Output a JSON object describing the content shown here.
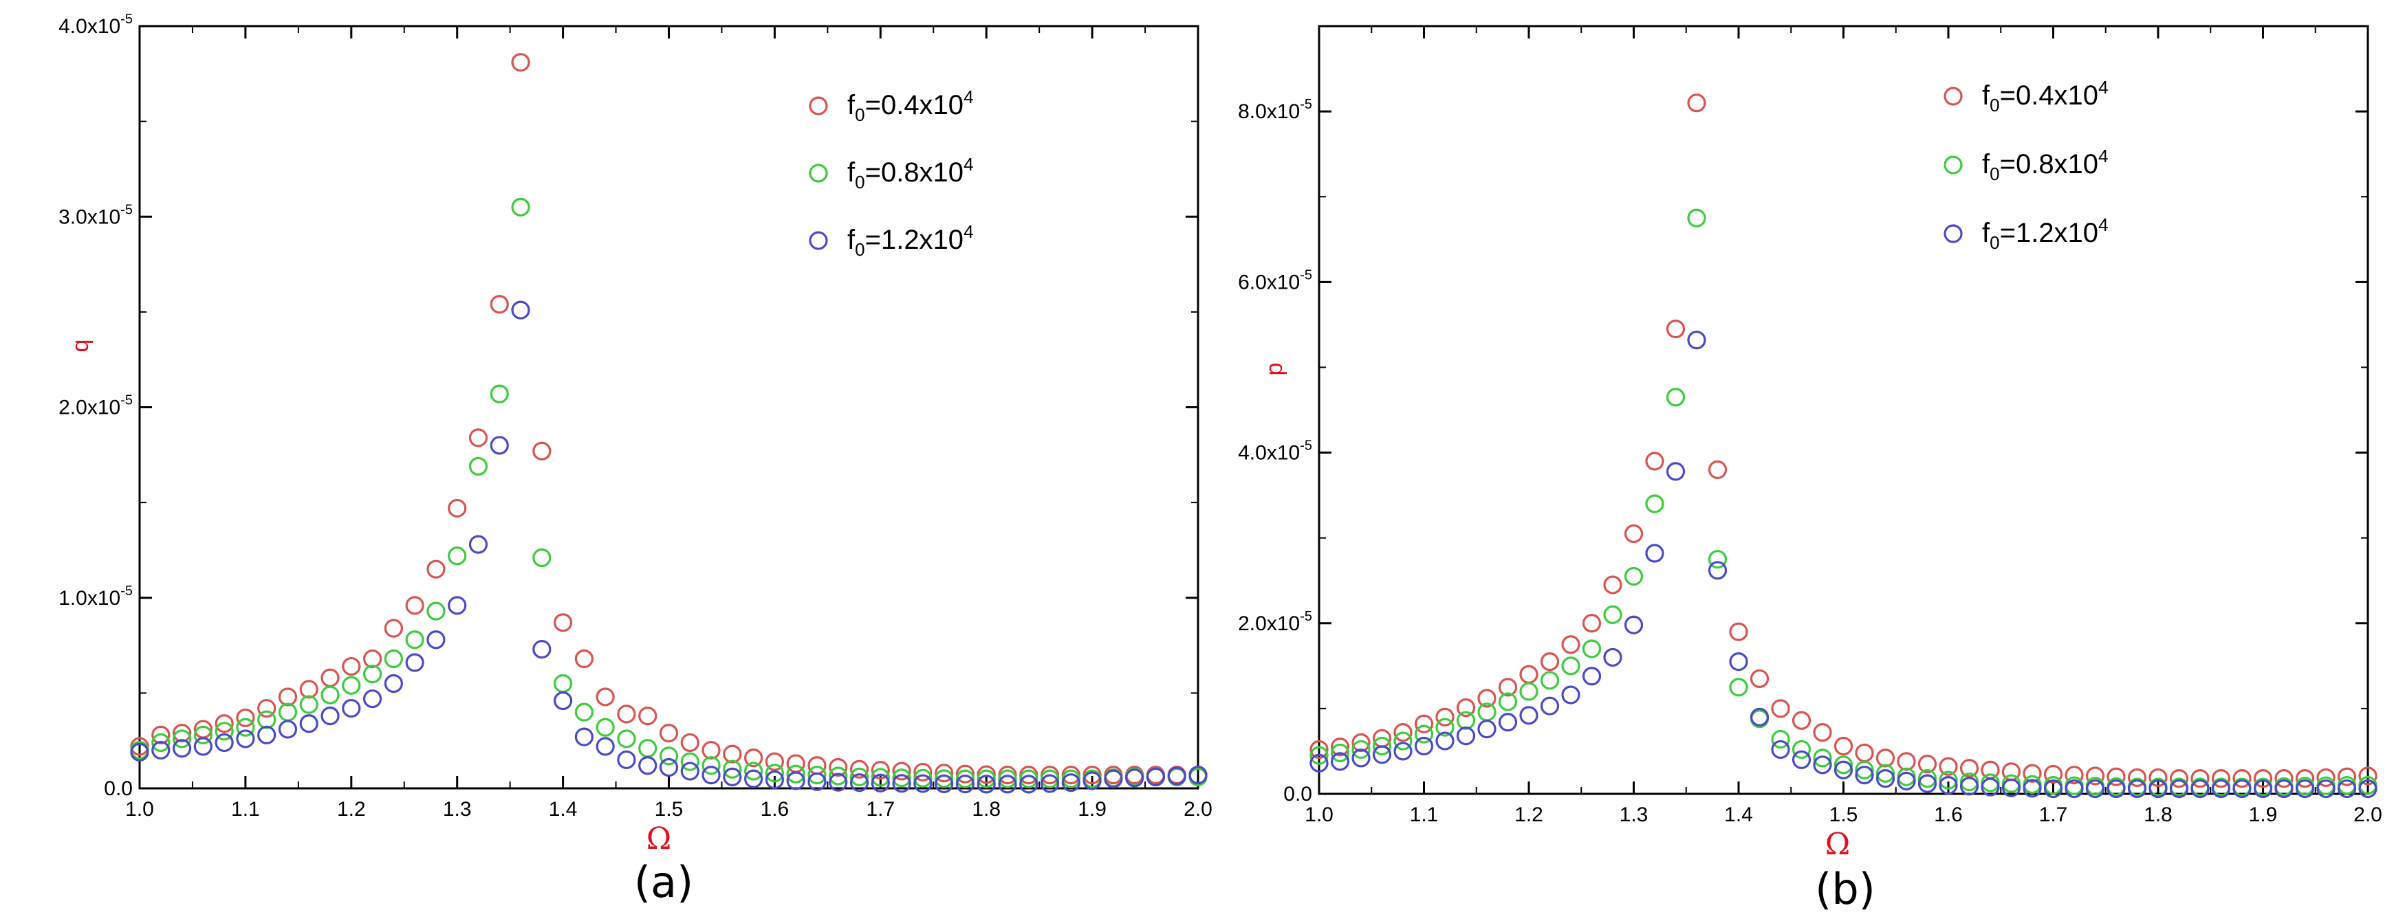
{
  "chart_data": [
    {
      "panel_label": "(a)",
      "type": "scatter",
      "xlabel": "Ω",
      "ylabel": "q",
      "xlim": [
        1.0,
        2.0
      ],
      "ylim": [
        0,
        4e-05
      ],
      "x_ticks": [
        "1.0",
        "1.1",
        "1.2",
        "1.3",
        "1.4",
        "1.5",
        "1.6",
        "1.7",
        "1.8",
        "1.9",
        "2.0"
      ],
      "y_ticks": [
        {
          "base": "0.0",
          "exp": ""
        },
        {
          "base": "1.0x10",
          "exp": "-5"
        },
        {
          "base": "2.0x10",
          "exp": "-5"
        },
        {
          "base": "3.0x10",
          "exp": "-5"
        },
        {
          "base": "4.0x10",
          "exp": "-5"
        }
      ],
      "legend_position": "top-right",
      "marker": "open-circle",
      "x": [
        1.0,
        1.02,
        1.04,
        1.06,
        1.08,
        1.1,
        1.12,
        1.14,
        1.16,
        1.18,
        1.2,
        1.22,
        1.24,
        1.26,
        1.28,
        1.3,
        1.32,
        1.34,
        1.36,
        1.38,
        1.4,
        1.42,
        1.44,
        1.46,
        1.48,
        1.5,
        1.52,
        1.54,
        1.56,
        1.58,
        1.6,
        1.62,
        1.64,
        1.66,
        1.68,
        1.7,
        1.72,
        1.74,
        1.76,
        1.78,
        1.8,
        1.82,
        1.84,
        1.86,
        1.88,
        1.9,
        1.92,
        1.94,
        1.96,
        1.98,
        2.0
      ],
      "series": [
        {
          "label_base": "f",
          "label_sub": "0",
          "label_mid": "=0.4x10",
          "label_exp": "4",
          "color": "#d9534f",
          "values": [
            2.2e-06,
            2.8e-06,
            2.9e-06,
            3.1e-06,
            3.4e-06,
            3.7e-06,
            4.2e-06,
            4.8e-06,
            5.2e-06,
            5.8e-06,
            6.4e-06,
            6.8e-06,
            8.4e-06,
            9.6e-06,
            1.15e-05,
            1.47e-05,
            1.84e-05,
            2.54e-05,
            3.81e-05,
            1.77e-05,
            8.7e-06,
            6.8e-06,
            4.8e-06,
            3.9e-06,
            3.8e-06,
            2.9e-06,
            2.4e-06,
            2e-06,
            1.8e-06,
            1.6e-06,
            1.4e-06,
            1.3e-06,
            1.2e-06,
            1.1e-06,
            1e-06,
            9.5e-07,
            9e-07,
            8.5e-07,
            8e-07,
            7.5e-07,
            7.2e-07,
            7e-07,
            7e-07,
            7e-07,
            7e-07,
            7e-07,
            7e-07,
            7e-07,
            7e-07,
            7e-07,
            7e-07
          ]
        },
        {
          "label_base": "f",
          "label_sub": "0",
          "label_mid": "=0.8x10",
          "label_exp": "4",
          "color": "#3ccc3c",
          "values": [
            2e-06,
            2.4e-06,
            2.6e-06,
            2.8e-06,
            3e-06,
            3.2e-06,
            3.6e-06,
            4e-06,
            4.4e-06,
            4.9e-06,
            5.4e-06,
            6e-06,
            6.8e-06,
            7.8e-06,
            9.3e-06,
            1.22e-05,
            1.69e-05,
            2.07e-05,
            3.05e-05,
            1.21e-05,
            5.5e-06,
            4e-06,
            3.2e-06,
            2.6e-06,
            2.1e-06,
            1.7e-06,
            1.4e-06,
            1.2e-06,
            1e-06,
            9e-07,
            8e-07,
            7.5e-07,
            7e-07,
            6.5e-07,
            6e-07,
            5.8e-07,
            5.5e-07,
            5.3e-07,
            5.1e-07,
            5e-07,
            5e-07,
            5e-07,
            5e-07,
            5e-07,
            5e-07,
            5e-07,
            5.5e-07,
            6e-07,
            6e-07,
            6e-07,
            6e-07
          ]
        },
        {
          "label_base": "f",
          "label_sub": "0",
          "label_mid": "=1.2x10",
          "label_exp": "4",
          "color": "#4a4ac8",
          "values": [
            1.9e-06,
            2e-06,
            2.1e-06,
            2.2e-06,
            2.4e-06,
            2.6e-06,
            2.8e-06,
            3.1e-06,
            3.4e-06,
            3.8e-06,
            4.2e-06,
            4.7e-06,
            5.5e-06,
            6.6e-06,
            7.8e-06,
            9.6e-06,
            1.28e-05,
            1.8e-05,
            2.51e-05,
            7.3e-06,
            4.6e-06,
            2.7e-06,
            2.2e-06,
            1.5e-06,
            1.2e-06,
            1.1e-06,
            9e-07,
            7e-07,
            6e-07,
            5e-07,
            4.5e-07,
            4e-07,
            3.5e-07,
            3.2e-07,
            3e-07,
            2.8e-07,
            2.6e-07,
            2.5e-07,
            2.4e-07,
            2.3e-07,
            2.2e-07,
            2.2e-07,
            2.2e-07,
            2.5e-07,
            3e-07,
            4e-07,
            5e-07,
            5.5e-07,
            6e-07,
            6.5e-07,
            7e-07
          ]
        }
      ]
    },
    {
      "panel_label": "(b)",
      "type": "scatter",
      "xlabel": "Ω",
      "ylabel": "p",
      "xlim": [
        1.0,
        2.0
      ],
      "ylim": [
        0,
        9e-05
      ],
      "x_ticks": [
        "1.0",
        "1.1",
        "1.2",
        "1.3",
        "1.4",
        "1.5",
        "1.6",
        "1.7",
        "1.8",
        "1.9",
        "2.0"
      ],
      "y_ticks": [
        {
          "base": "0.0",
          "exp": ""
        },
        {
          "base": "2.0x10",
          "exp": "-5"
        },
        {
          "base": "4.0x10",
          "exp": "-5"
        },
        {
          "base": "6.0x10",
          "exp": "-5"
        },
        {
          "base": "8.0x10",
          "exp": "-5"
        }
      ],
      "legend_position": "top-right",
      "marker": "open-circle",
      "x": [
        1.0,
        1.02,
        1.04,
        1.06,
        1.08,
        1.1,
        1.12,
        1.14,
        1.16,
        1.18,
        1.2,
        1.22,
        1.24,
        1.26,
        1.28,
        1.3,
        1.32,
        1.34,
        1.36,
        1.38,
        1.4,
        1.42,
        1.44,
        1.46,
        1.48,
        1.5,
        1.52,
        1.54,
        1.56,
        1.58,
        1.6,
        1.62,
        1.64,
        1.66,
        1.68,
        1.7,
        1.72,
        1.74,
        1.76,
        1.78,
        1.8,
        1.82,
        1.84,
        1.86,
        1.88,
        1.9,
        1.92,
        1.94,
        1.96,
        1.98,
        2.0
      ],
      "series": [
        {
          "label_base": "f",
          "label_sub": "0",
          "label_mid": "=0.4x10",
          "label_exp": "4",
          "color": "#d9534f",
          "values": [
            5.2e-06,
            5.5e-06,
            6e-06,
            6.5e-06,
            7.2e-06,
            8.2e-06,
            9e-06,
            1.01e-05,
            1.12e-05,
            1.25e-05,
            1.4e-05,
            1.55e-05,
            1.75e-05,
            2e-05,
            2.45e-05,
            3.05e-05,
            3.9e-05,
            5.45e-05,
            8.1e-05,
            3.8e-05,
            1.9e-05,
            1.35e-05,
            1e-05,
            8.6e-06,
            7.2e-06,
            5.6e-06,
            4.8e-06,
            4.2e-06,
            3.8e-06,
            3.5e-06,
            3.2e-06,
            3e-06,
            2.8e-06,
            2.6e-06,
            2.4e-06,
            2.3e-06,
            2.2e-06,
            2.1e-06,
            2e-06,
            1.9e-06,
            1.9e-06,
            1.8e-06,
            1.8e-06,
            1.8e-06,
            1.8e-06,
            1.8e-06,
            1.8e-06,
            1.8e-06,
            1.9e-06,
            2e-06,
            2.1e-06
          ]
        },
        {
          "label_base": "f",
          "label_sub": "0",
          "label_mid": "=0.8x10",
          "label_exp": "4",
          "color": "#3ccc3c",
          "values": [
            4.5e-06,
            4.8e-06,
            5.2e-06,
            5.6e-06,
            6.2e-06,
            7e-06,
            7.8e-06,
            8.6e-06,
            9.6e-06,
            1.08e-05,
            1.2e-05,
            1.33e-05,
            1.5e-05,
            1.7e-05,
            2.1e-05,
            2.55e-05,
            3.4e-05,
            4.65e-05,
            6.75e-05,
            2.75e-05,
            1.25e-05,
            8.8e-06,
            6.4e-06,
            5.2e-06,
            4.2e-06,
            3.4e-06,
            2.8e-06,
            2.4e-06,
            2e-06,
            1.8e-06,
            1.6e-06,
            1.4e-06,
            1.3e-06,
            1.2e-06,
            1.1e-06,
            1e-06,
            9.5e-07,
            9e-07,
            8.5e-07,
            8e-07,
            8e-07,
            8e-07,
            8e-07,
            8e-07,
            8e-07,
            8e-07,
            8.5e-07,
            9e-07,
            9.5e-07,
            1e-06,
            1e-06
          ]
        },
        {
          "label_base": "f",
          "label_sub": "0",
          "label_mid": "=1.2x10",
          "label_exp": "4",
          "color": "#4a4ac8",
          "values": [
            3.6e-06,
            3.8e-06,
            4.2e-06,
            4.6e-06,
            5e-06,
            5.6e-06,
            6.2e-06,
            6.8e-06,
            7.6e-06,
            8.4e-06,
            9.2e-06,
            1.03e-05,
            1.16e-05,
            1.38e-05,
            1.6e-05,
            1.98e-05,
            2.82e-05,
            3.78e-05,
            5.32e-05,
            2.62e-05,
            1.55e-05,
            9e-06,
            5.2e-06,
            4e-06,
            3.4e-06,
            2.8e-06,
            2.2e-06,
            1.8e-06,
            1.5e-06,
            1.2e-06,
            1e-06,
            9e-07,
            8e-07,
            7e-07,
            6.5e-07,
            6e-07,
            6e-07,
            6e-07,
            6e-07,
            6e-07,
            6e-07,
            6e-07,
            6e-07,
            6e-07,
            6e-07,
            6e-07,
            6e-07,
            6e-07,
            6e-07,
            6e-07,
            6e-07
          ]
        }
      ]
    }
  ]
}
